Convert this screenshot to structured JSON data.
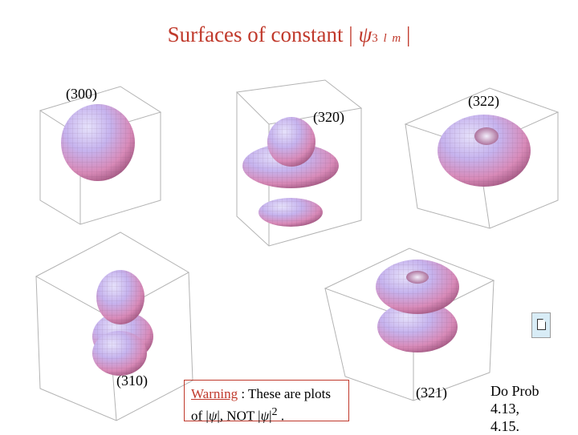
{
  "title": {
    "prefix": "Surfaces of constant |",
    "psi": "ψ",
    "n": "3",
    "l": "l",
    "m": "m",
    "suffix": "|"
  },
  "plots": [
    {
      "label": "(300)",
      "shape": "sphere"
    },
    {
      "label": "(320)",
      "shape": "dz2"
    },
    {
      "label": "(322)",
      "shape": "torus"
    },
    {
      "label": "(310)",
      "shape": "pz-lobes"
    },
    {
      "label": "(321)",
      "shape": "double-torus"
    }
  ],
  "warning": {
    "word": "Warning",
    "line1": ": These are plots",
    "of": "of |",
    "psi1": "ψ",
    "mid": "|, NOT |",
    "psi2": "ψ",
    "end": "|",
    "sup": "2",
    "period": "."
  },
  "problem": {
    "line1": "Do Prob",
    "line2": "4.13,",
    "line3": "4.15."
  },
  "icon": "document-icon",
  "colors": {
    "title": "#c0392b",
    "surface_light": "#c9c2f0",
    "surface_mid": "#d985b5",
    "surface_dark": "#9a4e78",
    "box_lines": "#b3b3b3"
  }
}
